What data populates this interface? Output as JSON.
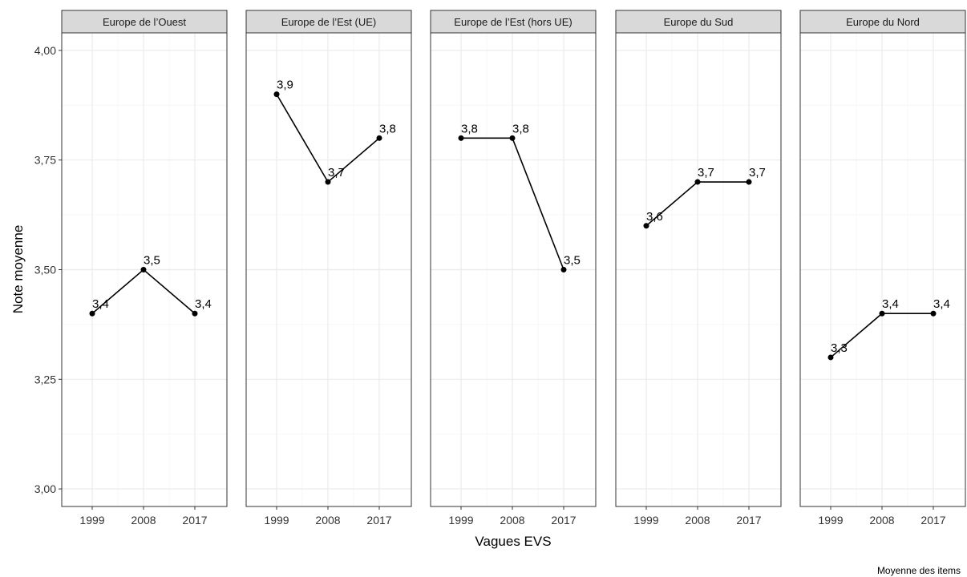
{
  "chart_data": {
    "type": "line",
    "title": "",
    "xlabel": "Vagues EVS",
    "ylabel": "Note moyenne",
    "caption": "Moyenne des items",
    "x": [
      "1999",
      "2008",
      "2017"
    ],
    "ylim": [
      2.96,
      4.04
    ],
    "y_ticks": [
      3.0,
      3.25,
      3.5,
      3.75,
      4.0
    ],
    "y_tick_labels": [
      "3,00",
      "3,25",
      "3,50",
      "3,75",
      "4,00"
    ],
    "grid": true,
    "facets": [
      {
        "label": "Europe de l’Ouest",
        "values": [
          3.4,
          3.5,
          3.4
        ],
        "value_labels": [
          "3,4",
          "3,5",
          "3,4"
        ]
      },
      {
        "label": "Europe de l’Est (UE)",
        "values": [
          3.9,
          3.7,
          3.8
        ],
        "value_labels": [
          "3,9",
          "3,7",
          "3,8"
        ]
      },
      {
        "label": "Europe de l’Est (hors UE)",
        "values": [
          3.8,
          3.8,
          3.5
        ],
        "value_labels": [
          "3,8",
          "3,8",
          "3,5"
        ]
      },
      {
        "label": "Europe du Sud",
        "values": [
          3.6,
          3.7,
          3.7
        ],
        "value_labels": [
          "3,6",
          "3,7",
          "3,7"
        ]
      },
      {
        "label": "Europe du Nord",
        "values": [
          3.3,
          3.4,
          3.4
        ],
        "value_labels": [
          "3,3",
          "3,4",
          "3,4"
        ]
      }
    ],
    "colors": {
      "line": "#000000",
      "strip_bg": "#d9d9d9",
      "panel_border": "#333333",
      "grid_major": "#ebebeb",
      "grid_minor": "#f5f5f5"
    }
  }
}
